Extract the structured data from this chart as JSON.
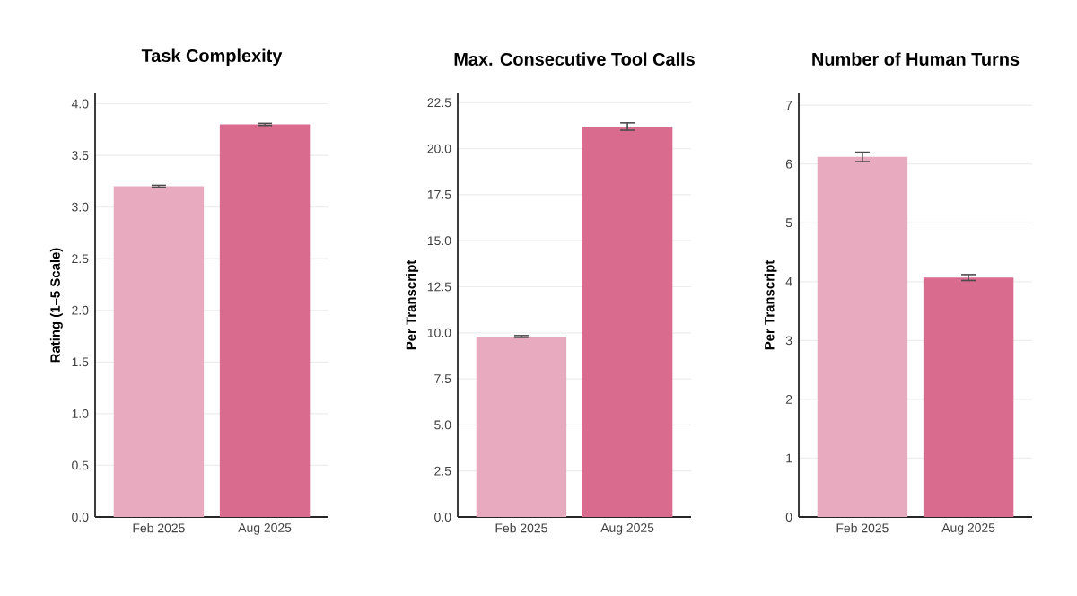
{
  "chart_data": [
    {
      "type": "bar",
      "title": "Task Complexity",
      "ylabel": "Rating (1–5 Scale)",
      "categories": [
        "Feb 2025",
        "Aug 2025"
      ],
      "values": [
        3.2,
        3.8
      ],
      "errors": [
        0.01,
        0.01
      ],
      "colors": [
        "#e8aabf",
        "#d96b8f"
      ],
      "ylim": [
        0,
        4.1
      ],
      "yticks": [
        {
          "value": 0,
          "label": "0.0"
        },
        0.5,
        {
          "value": 1,
          "label": "1.0"
        },
        1.5,
        {
          "value": 2,
          "label": "2.0"
        },
        2.5,
        {
          "value": 3,
          "label": "3.0"
        },
        3.5,
        {
          "value": 4,
          "label": "4.0"
        }
      ],
      "grid": "y"
    },
    {
      "type": "bar",
      "title": "Max. Consecutive Tool Calls",
      "ylabel": "Per Transcript",
      "categories": [
        "Feb 2025",
        "Aug 2025"
      ],
      "values": [
        9.8,
        21.2
      ],
      "errors": [
        0.05,
        0.2
      ],
      "colors": [
        "#e8aabf",
        "#d96b8f"
      ],
      "ylim": [
        0,
        23
      ],
      "yticks": [
        {
          "value": 0,
          "label": "0.0"
        },
        2.5,
        {
          "value": 5,
          "label": "5.0"
        },
        7.5,
        {
          "value": 10,
          "label": "10.0"
        },
        12.5,
        {
          "value": 15,
          "label": "15.0"
        },
        17.5,
        {
          "value": 20,
          "label": "20.0"
        },
        22.5
      ],
      "grid": "y"
    },
    {
      "type": "bar",
      "title": "Number of Human Turns",
      "ylabel": "Per Transcript",
      "categories": [
        "Feb 2025",
        "Aug 2025"
      ],
      "values": [
        6.12,
        4.07
      ],
      "errors": [
        0.08,
        0.05
      ],
      "colors": [
        "#e8aabf",
        "#d96b8f"
      ],
      "ylim": [
        0,
        7.2
      ],
      "yticks": [
        0,
        1,
        2,
        3,
        4,
        5,
        6,
        7
      ],
      "grid": "y"
    }
  ]
}
